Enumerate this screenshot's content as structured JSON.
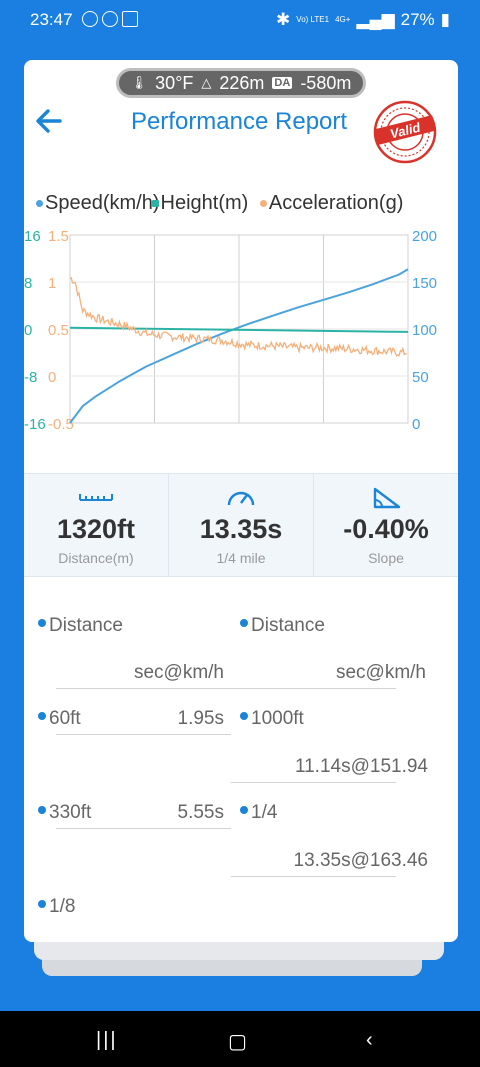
{
  "status": {
    "time": "23:47",
    "network": "Vo) LTE1",
    "net4g": "4G+",
    "battery": "27%"
  },
  "env": {
    "temp": "30°F",
    "altitude": "226m",
    "da_label": "DA",
    "da_value": "-580m"
  },
  "header": {
    "title": "Performance Report",
    "stamp": "Valid"
  },
  "legend": [
    {
      "name": "Speed(km/h)",
      "color": "#4aa3df"
    },
    {
      "name": "Height(m)",
      "color": "#2ab3a5"
    },
    {
      "name": "Acceleration(g)",
      "color": "#f4b07a"
    }
  ],
  "chart_data": {
    "type": "line",
    "series": [
      {
        "name": "Speed(km/h)",
        "axis": "right",
        "x": [
          0,
          0.5,
          1,
          2,
          3,
          4,
          5,
          6,
          7,
          8,
          9,
          10,
          11,
          12,
          13,
          13.35
        ],
        "values": [
          0,
          18,
          28,
          45,
          60,
          72,
          84,
          95,
          105,
          114,
          123,
          131,
          139,
          148,
          158,
          163.46
        ]
      },
      {
        "name": "Height(m)",
        "axis": "left-outer",
        "x": [
          0,
          13.35
        ],
        "values": [
          0.2,
          -0.5
        ]
      },
      {
        "name": "Acceleration(g)",
        "axis": "left-inner",
        "x": [
          0,
          0.2,
          0.5,
          1,
          1.5,
          2,
          3,
          4,
          5,
          6,
          7,
          8,
          9,
          10,
          11,
          12,
          13,
          13.35
        ],
        "values": [
          1.05,
          1.0,
          0.7,
          0.62,
          0.58,
          0.55,
          0.45,
          0.42,
          0.4,
          0.38,
          0.33,
          0.32,
          0.3,
          0.3,
          0.29,
          0.27,
          0.25,
          0.25
        ]
      }
    ],
    "axes": {
      "left_outer": {
        "ticks": [
          "16",
          "8",
          "0",
          "-8",
          "-16"
        ],
        "range": [
          -16,
          16
        ],
        "color": "#2ab3a5"
      },
      "left_inner": {
        "ticks": [
          "1.5",
          "1",
          "0.5",
          "0",
          "-0.5"
        ],
        "range": [
          -0.5,
          1.5
        ],
        "color": "#f4b07a"
      },
      "right": {
        "ticks": [
          "200",
          "150",
          "100",
          "50",
          "0"
        ],
        "range": [
          0,
          200
        ],
        "color": "#4aa3df"
      }
    },
    "grid": true
  },
  "stats": [
    {
      "icon": "ruler-icon",
      "value": "1320ft",
      "label": "Distance(m)"
    },
    {
      "icon": "speedometer-icon",
      "value": "13.35s",
      "label": "1/4 mile"
    },
    {
      "icon": "slope-icon",
      "value": "-0.40%",
      "label": "Slope"
    }
  ],
  "table": {
    "left_header": "Distance",
    "right_header": "Distance",
    "left_unit": "sec@km/h",
    "right_unit": "sec@km/h",
    "left_rows": [
      {
        "label": "60ft",
        "value": "1.95s"
      },
      {
        "label": "330ft",
        "value": "5.55s"
      },
      {
        "label": "1/8",
        "value": ""
      }
    ],
    "right_rows": [
      {
        "label": "1000ft",
        "value": "11.14s@151.94"
      },
      {
        "label": "1/4",
        "value": "13.35s@163.46"
      }
    ]
  }
}
